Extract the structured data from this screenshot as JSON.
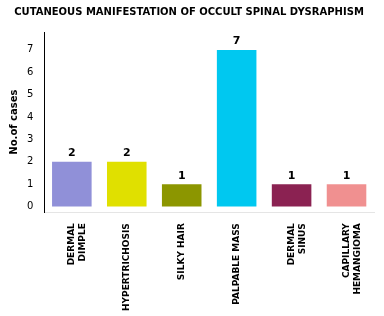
{
  "chart_data": {
    "type": "bar",
    "title": "CUTANEOUS MANIFESTATION OF OCCULT SPINAL DYSRAPHISM",
    "categories": [
      "DERMAL\nDIMPLE",
      "HYPERTRICHOSIS",
      "SILKY HAIR",
      "PALPABLE MASS",
      "DERMAL\nSINUS",
      "CAPILLARY\nHEMANGIOMA"
    ],
    "values": [
      2,
      2,
      1,
      7,
      1,
      1
    ],
    "colors": [
      "#9090d8",
      "#e0e000",
      "#8c9600",
      "#00c8f0",
      "#8b2252",
      "#f09090"
    ],
    "y_label": "No.of cases",
    "ylim": [
      -0.25,
      7.8
    ],
    "yticks": [
      0,
      1,
      2,
      3,
      4,
      5,
      6,
      7
    ],
    "grid": false,
    "data_labels": true
  }
}
